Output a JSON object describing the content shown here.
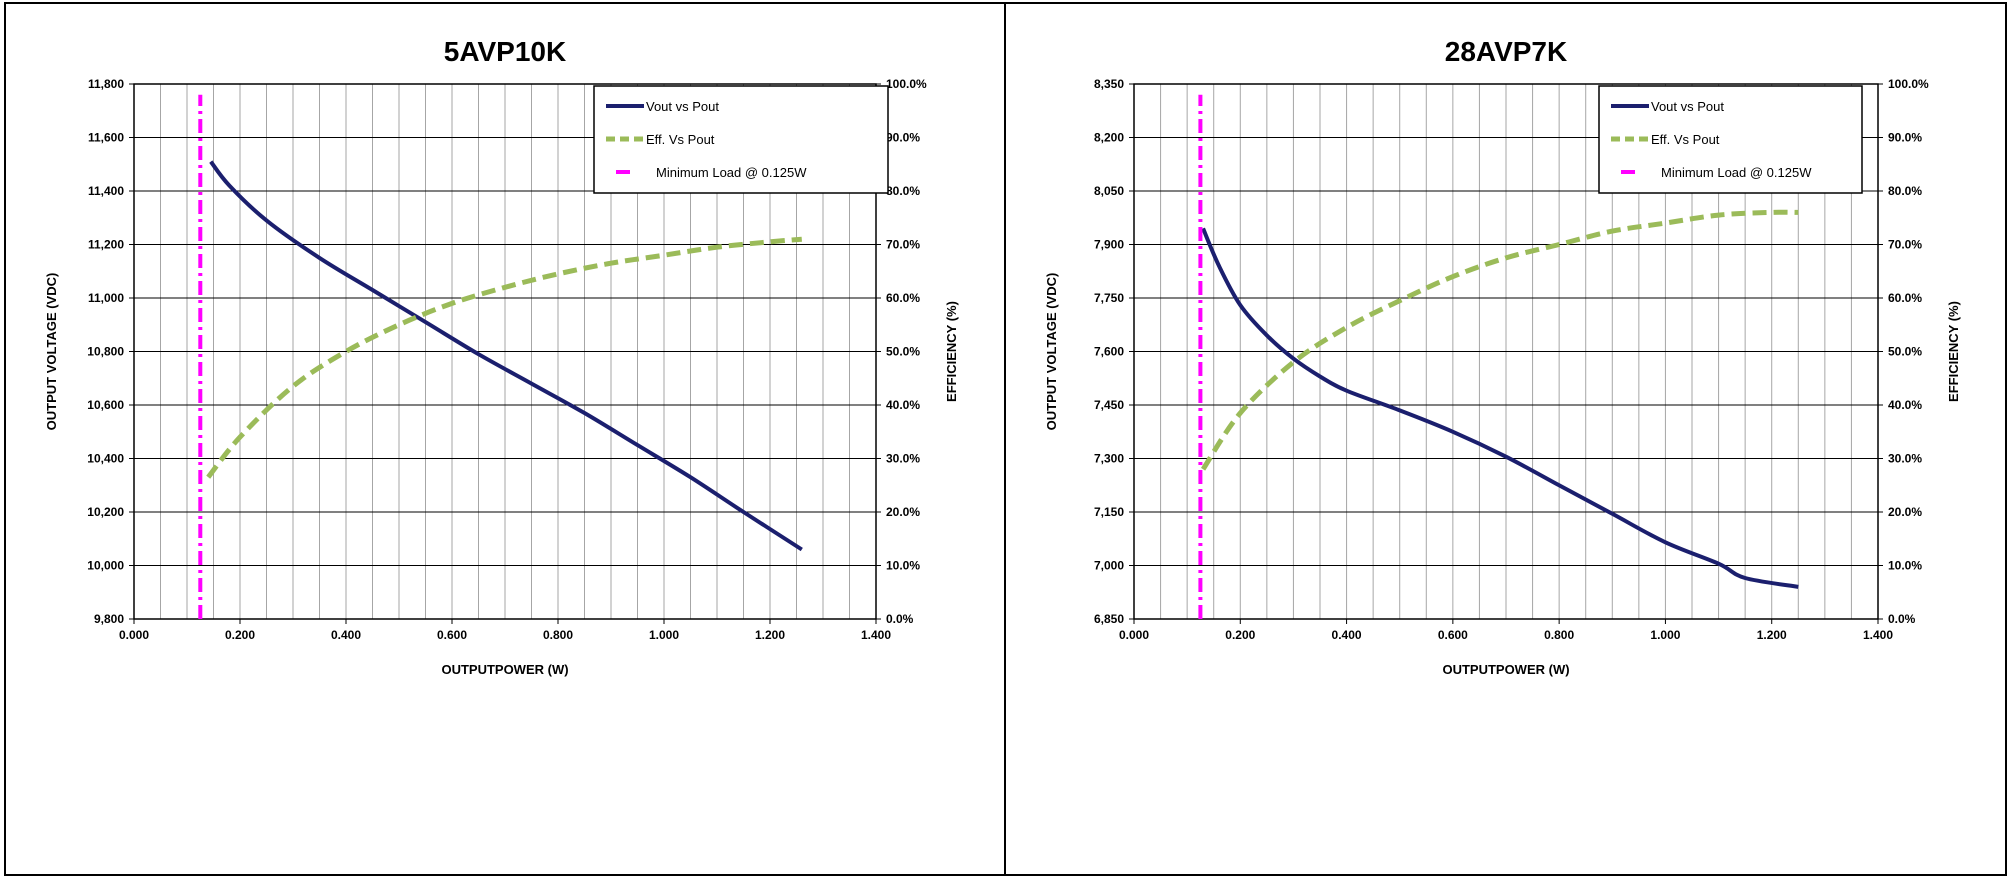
{
  "chart_data": [
    {
      "type": "line",
      "title": "5AVP10K",
      "xlabel": "OUTPUTPOWER (W)",
      "ylabel": "OUTPUT VOLTAGE (VDC)",
      "y2label": "EFFICIENCY (%)",
      "xlim": [
        0,
        1.4
      ],
      "ylim": [
        9800,
        11800
      ],
      "y2lim": [
        0,
        100
      ],
      "x_ticks": [
        "0.000",
        "0.200",
        "0.400",
        "0.600",
        "0.800",
        "1.000",
        "1.200",
        "1.400"
      ],
      "y_ticks": [
        "9,800",
        "10,000",
        "10,200",
        "10,400",
        "10,600",
        "10,800",
        "11,000",
        "11,200",
        "11,400",
        "11,600",
        "11,800"
      ],
      "y2_ticks": [
        "0.0%",
        "10.0%",
        "20.0%",
        "30.0%",
        "40.0%",
        "50.0%",
        "60.0%",
        "70.0%",
        "80.0%",
        "90.0%",
        "100.0%"
      ],
      "grid": "vertical",
      "legend_position": "top-right",
      "series": [
        {
          "name": "Vout vs Pout",
          "axis": "left",
          "color": "#1b1f6e",
          "style": "solid",
          "x": [
            0.145,
            0.18,
            0.25,
            0.35,
            0.45,
            0.55,
            0.65,
            0.75,
            0.85,
            0.95,
            1.05,
            1.15,
            1.26
          ],
          "y": [
            11510,
            11420,
            11290,
            11150,
            11030,
            10910,
            10790,
            10680,
            10570,
            10450,
            10330,
            10200,
            10060
          ]
        },
        {
          "name": "Eff. Vs Pout",
          "axis": "right",
          "color": "#9bbb59",
          "style": "dashed",
          "x": [
            0.14,
            0.2,
            0.3,
            0.4,
            0.5,
            0.6,
            0.7,
            0.8,
            0.9,
            1.0,
            1.1,
            1.2,
            1.26
          ],
          "y": [
            26.5,
            34,
            43.5,
            50,
            55,
            59,
            62,
            64.5,
            66.5,
            68,
            69.5,
            70.5,
            71
          ]
        },
        {
          "name": "Minimum Load @ 0.125W",
          "axis": "left",
          "color": "#ff00ff",
          "style": "dash-dot",
          "x": [
            0.125,
            0.125
          ],
          "y": [
            9800,
            11760
          ]
        }
      ]
    },
    {
      "type": "line",
      "title": "28AVP7K",
      "xlabel": "OUTPUTPOWER (W)",
      "ylabel": "OUTPUT VOLTAGE (VDC)",
      "y2label": "EFFICIENCY (%)",
      "xlim": [
        0,
        1.4
      ],
      "ylim": [
        6850,
        8350
      ],
      "y2lim": [
        0,
        100
      ],
      "x_ticks": [
        "0.000",
        "0.200",
        "0.400",
        "0.600",
        "0.800",
        "1.000",
        "1.200",
        "1.400"
      ],
      "y_ticks": [
        "6,850",
        "7,000",
        "7,150",
        "7,300",
        "7,450",
        "7,600",
        "7,750",
        "7,900",
        "8,050",
        "8,200",
        "8,350"
      ],
      "y2_ticks": [
        "0.0%",
        "10.0%",
        "20.0%",
        "30.0%",
        "40.0%",
        "50.0%",
        "60.0%",
        "70.0%",
        "80.0%",
        "90.0%",
        "100.0%"
      ],
      "grid": "vertical",
      "legend_position": "top-right",
      "series": [
        {
          "name": "Vout vs Pout",
          "axis": "left",
          "color": "#1b1f6e",
          "style": "solid",
          "x": [
            0.13,
            0.16,
            0.2,
            0.25,
            0.3,
            0.35,
            0.4,
            0.5,
            0.6,
            0.7,
            0.8,
            0.9,
            1.0,
            1.1,
            1.15,
            1.25
          ],
          "y": [
            7945,
            7840,
            7730,
            7645,
            7580,
            7530,
            7490,
            7435,
            7375,
            7305,
            7225,
            7145,
            7065,
            7005,
            6965,
            6940
          ]
        },
        {
          "name": "Eff. Vs Pout",
          "axis": "right",
          "color": "#9bbb59",
          "style": "dashed",
          "x": [
            0.13,
            0.2,
            0.3,
            0.4,
            0.5,
            0.6,
            0.7,
            0.8,
            0.9,
            1.0,
            1.1,
            1.2,
            1.25
          ],
          "y": [
            28,
            38.5,
            48,
            54.5,
            59.5,
            64,
            67.5,
            70,
            72.5,
            74,
            75.5,
            76,
            76
          ]
        },
        {
          "name": "Minimum Load @ 0.125W",
          "axis": "left",
          "color": "#ff00ff",
          "style": "dash-dot",
          "x": [
            0.125,
            0.125
          ],
          "y": [
            6850,
            8320
          ]
        }
      ]
    }
  ]
}
